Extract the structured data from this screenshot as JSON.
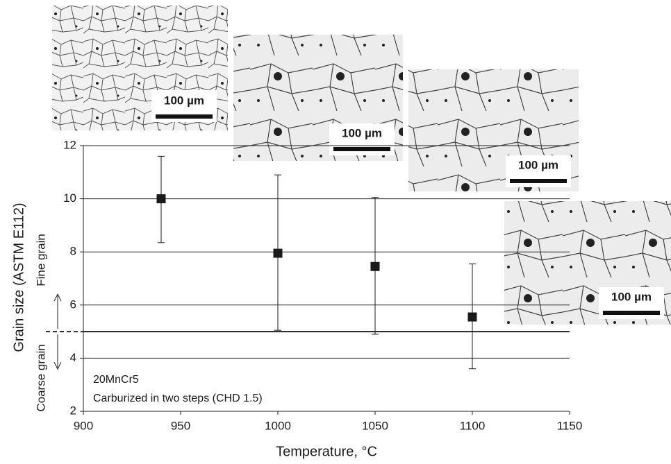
{
  "chart_data": {
    "type": "scatter",
    "x_label": "Temperature, °C",
    "y_label": "Grain size (ASTM E112)",
    "series": [
      {
        "color": "#1a1a1a",
        "x": [
          940,
          1000,
          1050,
          1100
        ],
        "values": [
          10.0,
          7.95,
          7.45,
          5.55
        ],
        "upper": [
          11.6,
          10.9,
          10.05,
          7.55
        ],
        "lower": [
          8.35,
          5.05,
          4.9,
          3.6
        ]
      }
    ],
    "xlim": [
      900,
      1150
    ],
    "xticks": [
      900,
      950,
      1000,
      1050,
      1100,
      1150
    ],
    "ylim": [
      2,
      12
    ],
    "yticks": [
      2,
      4,
      6,
      8,
      10,
      12
    ],
    "grid": true,
    "threshold": 5,
    "fine_label": "Fine grain",
    "coarse_label": "Coarse grain",
    "annotations": [
      "20MnCr5",
      "Carburized in two steps (CHD 1.5)"
    ]
  },
  "micrograph_scale_labels": [
    "100 µm",
    "100 µm",
    "100 µm",
    "100 µm"
  ]
}
